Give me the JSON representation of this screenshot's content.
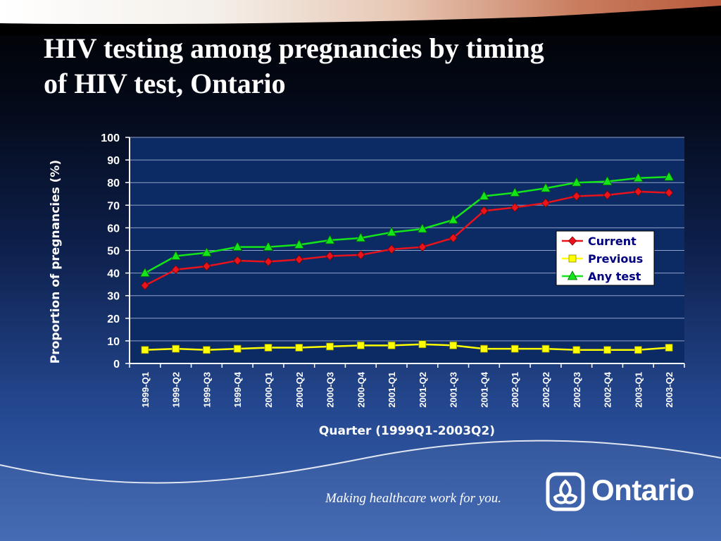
{
  "slide": {
    "title_line1": "HIV testing among pregnancies by timing",
    "title_line2": "of HIV test, Ontario",
    "tagline": "Making healthcare work for you.",
    "logo_text": "Ontario"
  },
  "colors": {
    "plot_background": "#0c2a63",
    "gridline": "#8fa3c6",
    "axis_text": "#ffffff",
    "current": "#e8131b",
    "previous": "#ffff00",
    "any_test": "#14e41a"
  },
  "chart_data": {
    "type": "line",
    "title": "",
    "xlabel": "Quarter (1999Q1-2003Q2)",
    "ylabel": "Proportion of pregnancies (%)",
    "ylim": [
      0,
      100
    ],
    "yticks": [
      0,
      10,
      20,
      30,
      40,
      50,
      60,
      70,
      80,
      90,
      100
    ],
    "grid": true,
    "legend_position": "right-middle",
    "categories": [
      "1999-Q1",
      "1999-Q2",
      "1999-Q3",
      "1999-Q4",
      "2000-Q1",
      "2000-Q2",
      "2000-Q3",
      "2000-Q4",
      "2001-Q1",
      "2001-Q2",
      "2001-Q3",
      "2001-Q4",
      "2002-Q1",
      "2002-Q2",
      "2002-Q3",
      "2002-Q4",
      "2003-Q1",
      "2003-Q2"
    ],
    "series": [
      {
        "name": "Current",
        "marker": "diamond",
        "color": "#e8131b",
        "values": [
          34.5,
          41.5,
          43.0,
          45.5,
          45.0,
          46.0,
          47.5,
          48.0,
          50.5,
          51.5,
          55.5,
          67.5,
          69.0,
          71.0,
          74.0,
          74.5,
          76.0,
          75.5
        ]
      },
      {
        "name": "Previous",
        "marker": "square",
        "color": "#ffff00",
        "values": [
          6.0,
          6.5,
          6.0,
          6.5,
          7.0,
          7.0,
          7.5,
          8.0,
          8.0,
          8.5,
          8.0,
          6.5,
          6.5,
          6.5,
          6.0,
          6.0,
          6.0,
          7.0
        ]
      },
      {
        "name": "Any test",
        "marker": "triangle",
        "color": "#14e41a",
        "values": [
          40.0,
          47.5,
          49.0,
          51.5,
          51.5,
          52.5,
          54.5,
          55.5,
          58.0,
          59.5,
          63.5,
          74.0,
          75.5,
          77.5,
          80.0,
          80.5,
          82.0,
          82.5
        ]
      }
    ]
  }
}
